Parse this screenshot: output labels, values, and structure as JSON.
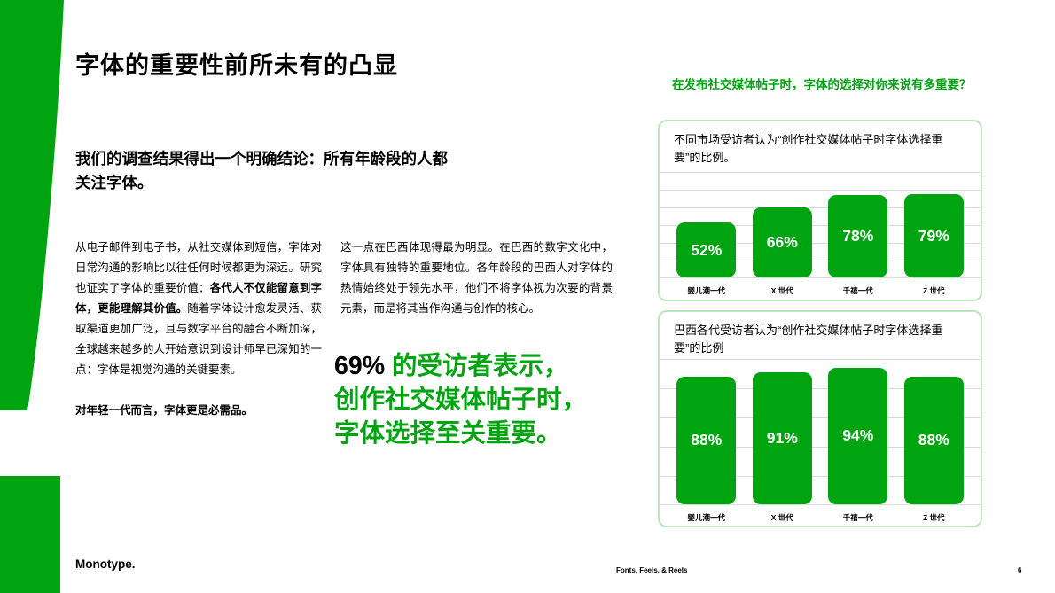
{
  "colors": {
    "accent_green": "#00a410",
    "card_border": "#bce5bc",
    "gridline": "#d9d9d9",
    "bar_value_label": "#ffffff",
    "text": "#000000"
  },
  "header": {
    "title": "字体的重要性前所未有的凸显"
  },
  "intro": "我们的调查结果得出一个明确结论：所有年龄段的人都关注字体。",
  "body": {
    "col1_part1": "从电子邮件到电子书，从社交媒体到短信，字体对日常沟通的影响比以往任何时候都更为深远。研究也证实了字体的重要价值：",
    "col1_bold": "各代人不仅能留意到字体，更能理解其价值。",
    "col1_part2": "随着字体设计愈发灵活、获取渠道更加广泛，且与数字平台的融合不断加深，全球越来越多的人开始意识到设计师早已深知的一点：字体是视觉沟通的关键要素。",
    "col1_note": "对年轻一代而言，字体更是必需品。",
    "col2": "这一点在巴西体现得最为明显。在巴西的数字文化中，字体具有独特的重要地位。各年龄段的巴西人对字体的热情始终处于领先水平，他们不将字体视为次要的背景元素，而是将其当作沟通与创作的核心。"
  },
  "highlight": {
    "number": "69%",
    "line1_rest": " 的受访者表示，",
    "line2": "创作社交媒体帖子时，",
    "line3": "字体选择至关重要。"
  },
  "right_panel": {
    "question": "在发布社交媒体帖子时，字体的选择对你来说有多重要？"
  },
  "chart_data": [
    {
      "type": "bar",
      "title": "不同市场受访者认为“创作社交媒体帖子时字体选择重要”的比例。",
      "categories": [
        "婴儿潮一代",
        "X 世代",
        "千禧一代",
        "Z 世代"
      ],
      "values": [
        52,
        66,
        78,
        79
      ],
      "unit": "%",
      "ylim": [
        0,
        100
      ],
      "grid": true,
      "legend": false,
      "bar_color": "#00a410",
      "value_label_style": "inside-white-bold"
    },
    {
      "type": "bar",
      "title": "巴西各代受访者认为“创作社交媒体帖子时字体选择重要”的比例",
      "categories": [
        "婴儿潮一代",
        "X 世代",
        "千禧一代",
        "Z 世代"
      ],
      "values": [
        88,
        91,
        94,
        88
      ],
      "unit": "%",
      "ylim": [
        0,
        100
      ],
      "grid": true,
      "legend": false,
      "bar_color": "#00a410",
      "value_label_style": "inside-white-bold"
    }
  ],
  "footer": {
    "brand": "Monotype.",
    "doc_title": "Fonts, Feels, & Reels",
    "page_number": "6"
  }
}
